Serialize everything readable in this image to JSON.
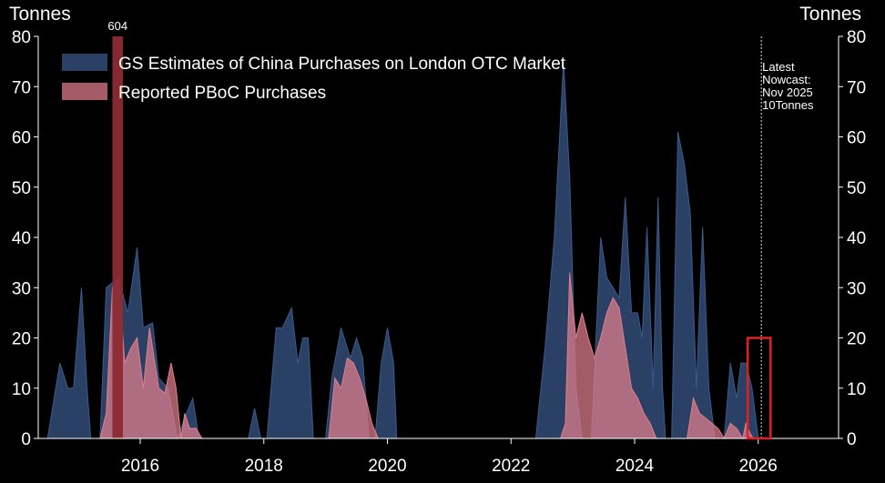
{
  "chart_data": {
    "type": "area",
    "title": "",
    "y_label_left": "Tonnes",
    "y_label_right": "Tonnes",
    "ylim": [
      0,
      80
    ],
    "y_ticks": [
      0,
      10,
      20,
      30,
      40,
      50,
      60,
      70,
      80
    ],
    "xlim": [
      2014.35,
      2027.3
    ],
    "x_ticks": [
      2016,
      2018,
      2020,
      2022,
      2024,
      2026
    ],
    "grid": false,
    "legend_position": "top-left",
    "series": [
      {
        "name": "GS Estimates of China Purchases on London OTC Market",
        "color": "#3a5a8c",
        "points": [
          [
            2014.5,
            0
          ],
          [
            2014.7,
            15
          ],
          [
            2014.83,
            10
          ],
          [
            2014.92,
            10
          ],
          [
            2015.05,
            30
          ],
          [
            2015.14,
            10
          ],
          [
            2015.2,
            0
          ],
          [
            2015.35,
            0
          ],
          [
            2015.45,
            30
          ],
          [
            2015.65,
            32
          ],
          [
            2015.8,
            25
          ],
          [
            2015.95,
            38
          ],
          [
            2016.05,
            22
          ],
          [
            2016.2,
            23
          ],
          [
            2016.3,
            12
          ],
          [
            2016.45,
            10
          ],
          [
            2016.6,
            0
          ],
          [
            2016.75,
            5
          ],
          [
            2016.85,
            8
          ],
          [
            2016.95,
            0
          ],
          [
            2017.75,
            0
          ],
          [
            2017.85,
            6
          ],
          [
            2017.95,
            0
          ],
          [
            2018.05,
            0
          ],
          [
            2018.2,
            22
          ],
          [
            2018.3,
            22
          ],
          [
            2018.45,
            26
          ],
          [
            2018.55,
            15
          ],
          [
            2018.63,
            20
          ],
          [
            2018.72,
            20
          ],
          [
            2018.8,
            0
          ],
          [
            2019.0,
            0
          ],
          [
            2019.1,
            12
          ],
          [
            2019.25,
            22
          ],
          [
            2019.4,
            16
          ],
          [
            2019.5,
            20
          ],
          [
            2019.6,
            16
          ],
          [
            2019.7,
            0
          ],
          [
            2019.8,
            0
          ],
          [
            2019.9,
            15
          ],
          [
            2020.0,
            22
          ],
          [
            2020.1,
            15
          ],
          [
            2020.15,
            0
          ],
          [
            2022.4,
            0
          ],
          [
            2022.55,
            18
          ],
          [
            2022.7,
            40
          ],
          [
            2022.85,
            75
          ],
          [
            2022.95,
            52
          ],
          [
            2023.05,
            10
          ],
          [
            2023.15,
            0
          ],
          [
            2023.3,
            0
          ],
          [
            2023.45,
            40
          ],
          [
            2023.55,
            32
          ],
          [
            2023.65,
            30
          ],
          [
            2023.75,
            28
          ],
          [
            2023.85,
            48
          ],
          [
            2023.95,
            25
          ],
          [
            2024.05,
            25
          ],
          [
            2024.12,
            20
          ],
          [
            2024.2,
            42
          ],
          [
            2024.3,
            10
          ],
          [
            2024.38,
            48
          ],
          [
            2024.45,
            10
          ],
          [
            2024.5,
            0
          ],
          [
            2024.6,
            0
          ],
          [
            2024.7,
            61
          ],
          [
            2024.8,
            55
          ],
          [
            2024.9,
            45
          ],
          [
            2025.0,
            10
          ],
          [
            2025.1,
            42
          ],
          [
            2025.2,
            10
          ],
          [
            2025.3,
            0
          ],
          [
            2025.45,
            0
          ],
          [
            2025.55,
            15
          ],
          [
            2025.65,
            8
          ],
          [
            2025.72,
            15
          ],
          [
            2025.8,
            15
          ],
          [
            2025.9,
            10
          ],
          [
            2026.0,
            0
          ]
        ]
      },
      {
        "name": "Reported PBoC Purchases",
        "color": "#e27e8c",
        "points": [
          [
            2015.35,
            0
          ],
          [
            2015.45,
            5
          ],
          [
            2015.55,
            30
          ],
          [
            2015.65,
            32
          ],
          [
            2015.75,
            15
          ],
          [
            2015.85,
            18
          ],
          [
            2015.95,
            20
          ],
          [
            2016.05,
            10
          ],
          [
            2016.15,
            22
          ],
          [
            2016.3,
            10
          ],
          [
            2016.4,
            9
          ],
          [
            2016.5,
            15
          ],
          [
            2016.58,
            10
          ],
          [
            2016.66,
            0
          ],
          [
            2016.72,
            5
          ],
          [
            2016.8,
            2
          ],
          [
            2016.9,
            2
          ],
          [
            2017.0,
            0
          ],
          [
            2019.05,
            0
          ],
          [
            2019.15,
            12
          ],
          [
            2019.25,
            10
          ],
          [
            2019.35,
            16
          ],
          [
            2019.45,
            15
          ],
          [
            2019.55,
            12
          ],
          [
            2019.65,
            8
          ],
          [
            2019.75,
            3
          ],
          [
            2019.85,
            0
          ],
          [
            2022.8,
            0
          ],
          [
            2022.88,
            3
          ],
          [
            2022.95,
            33
          ],
          [
            2023.05,
            20
          ],
          [
            2023.15,
            25
          ],
          [
            2023.25,
            20
          ],
          [
            2023.35,
            16
          ],
          [
            2023.45,
            20
          ],
          [
            2023.55,
            25
          ],
          [
            2023.65,
            28
          ],
          [
            2023.75,
            26
          ],
          [
            2023.85,
            18
          ],
          [
            2023.95,
            10
          ],
          [
            2024.05,
            8
          ],
          [
            2024.15,
            5
          ],
          [
            2024.25,
            3
          ],
          [
            2024.35,
            0
          ],
          [
            2024.85,
            0
          ],
          [
            2024.95,
            8
          ],
          [
            2025.05,
            5
          ],
          [
            2025.15,
            4
          ],
          [
            2025.25,
            3
          ],
          [
            2025.35,
            2
          ],
          [
            2025.45,
            0
          ],
          [
            2025.55,
            3
          ],
          [
            2025.65,
            2
          ],
          [
            2025.75,
            0
          ],
          [
            2025.8,
            3
          ],
          [
            2025.87,
            1
          ],
          [
            2025.92,
            0
          ]
        ]
      }
    ],
    "annotations": [
      {
        "text": "604",
        "x": 2015.55,
        "y": 80
      },
      {
        "lines": [
          "Latest",
          "Nowcast:",
          "Nov 2025",
          "10Tonnes"
        ],
        "x": 2026.05,
        "y": 80
      }
    ],
    "spike": {
      "x_start": 2015.55,
      "x_end": 2015.72,
      "value": 80
    },
    "nowcast_line_x": 2026.05,
    "highlight_box": {
      "x_start": 2025.83,
      "x_end": 2026.2,
      "y_start": 0,
      "y_end": 20
    }
  }
}
